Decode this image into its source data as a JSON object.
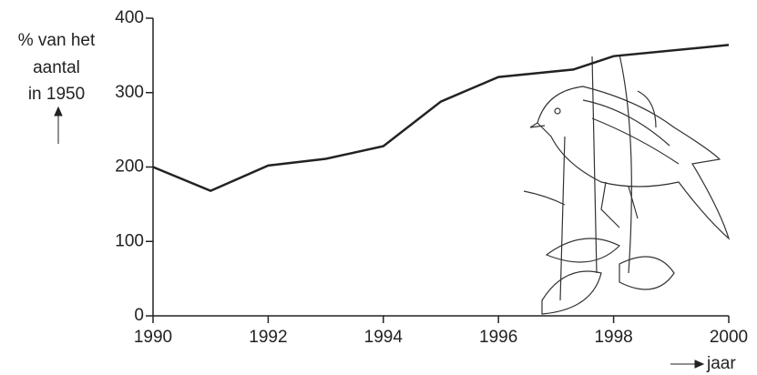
{
  "chart_data": {
    "type": "line",
    "ylabel": [
      "% van het",
      "aantal",
      "in 1950"
    ],
    "xlabel": "jaar",
    "x": [
      1990,
      1991,
      1992,
      1993,
      1994,
      1995,
      1996,
      1997.3,
      1998,
      2000
    ],
    "series": [
      {
        "name": null,
        "color": "#222222",
        "values": [
          200,
          168,
          202,
          211,
          228,
          288,
          321,
          331,
          349,
          364
        ]
      }
    ],
    "xlim": [
      1990,
      2000
    ],
    "xticks": [
      1990,
      1992,
      1994,
      1996,
      1998,
      2000
    ],
    "ylim": [
      0,
      400
    ],
    "yticks": [
      0,
      100,
      200,
      300,
      400
    ],
    "grid": false
  }
}
